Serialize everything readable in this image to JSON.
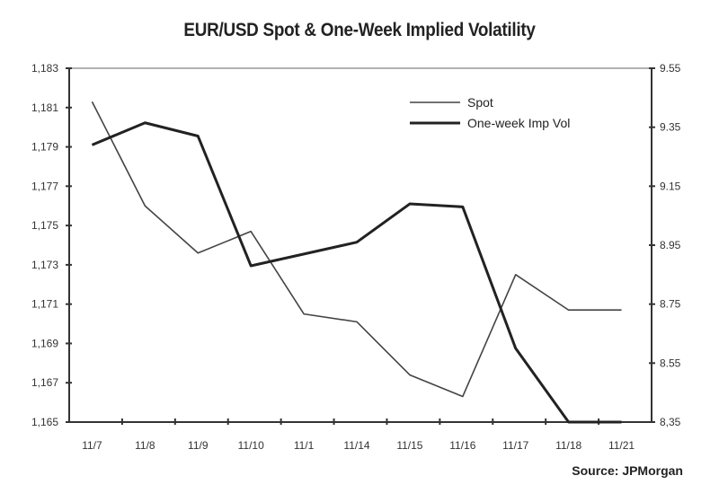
{
  "chart_data": {
    "type": "line",
    "title": "EUR/USD Spot & One-Week Implied Volatility",
    "source_label": "Source:",
    "source_name": "JPMorgan",
    "categories": [
      "11/7",
      "11/8",
      "11/9",
      "11/10",
      "11/1",
      "11/14",
      "11/15",
      "11/16",
      "11/17",
      "11/18",
      "11/21"
    ],
    "left_axis": {
      "ylim": [
        1.165,
        1.183
      ],
      "ticks": [
        "1,165",
        "1,167",
        "1,169",
        "1,171",
        "1,173",
        "1,175",
        "1,177",
        "1,179",
        "1,181",
        "1,183"
      ]
    },
    "right_axis": {
      "ylim": [
        8.35,
        9.55
      ],
      "ticks": [
        "8,35",
        "8.55",
        "8.75",
        "8.95",
        "9.15",
        "9.35",
        "9.55"
      ]
    },
    "series": [
      {
        "name": "Spot",
        "axis": "left",
        "values": [
          1.1813,
          1.176,
          1.1736,
          1.1747,
          1.1705,
          1.1701,
          1.1674,
          1.1663,
          1.1725,
          1.1707,
          1.1707
        ]
      },
      {
        "name": "One-week Imp Vol",
        "axis": "right",
        "values": [
          9.29,
          9.365,
          9.32,
          8.88,
          8.92,
          8.96,
          9.09,
          9.08,
          8.6,
          8.35,
          8.35
        ]
      }
    ],
    "legend_position": "top-right",
    "grid": false
  }
}
